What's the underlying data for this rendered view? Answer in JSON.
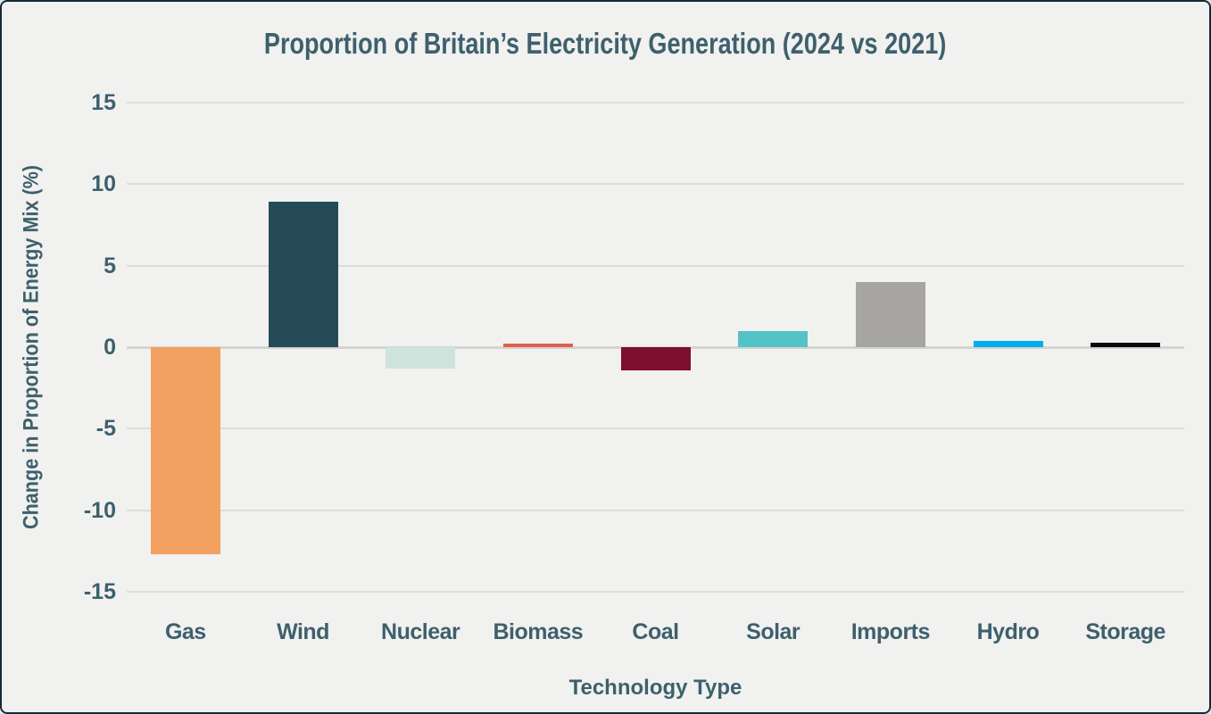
{
  "frame": {
    "background_color": "#F1F1F0",
    "border_color": "#132b36",
    "text_color": "#3E606C",
    "grid_color": "#DDDDDD",
    "zero_line_color": "#D4D4D4"
  },
  "chart_data": {
    "type": "bar",
    "title": "Proportion of Britain’s Electricity Generation (2024 vs 2021)",
    "xlabel": "Technology Type",
    "ylabel": "Change in Proportion of Energy Mix (%)",
    "categories": [
      "Gas",
      "Wind",
      "Nuclear",
      "Biomass",
      "Coal",
      "Solar",
      "Imports",
      "Hydro",
      "Storage"
    ],
    "values": [
      -12.7,
      8.9,
      -1.3,
      0.2,
      -1.4,
      1.0,
      4.0,
      0.4,
      0.3
    ],
    "bar_colors": [
      "#F2A161",
      "#254B59",
      "#CEE3DC",
      "#E0604B",
      "#7D0E2D",
      "#54C3C6",
      "#A6A5A4",
      "#00AEE9",
      "#0A0A0A"
    ],
    "ylim": [
      -15,
      15
    ],
    "yticks": [
      15,
      10,
      5,
      0,
      -5,
      -10,
      -15
    ],
    "grid": true,
    "legend": "none"
  }
}
